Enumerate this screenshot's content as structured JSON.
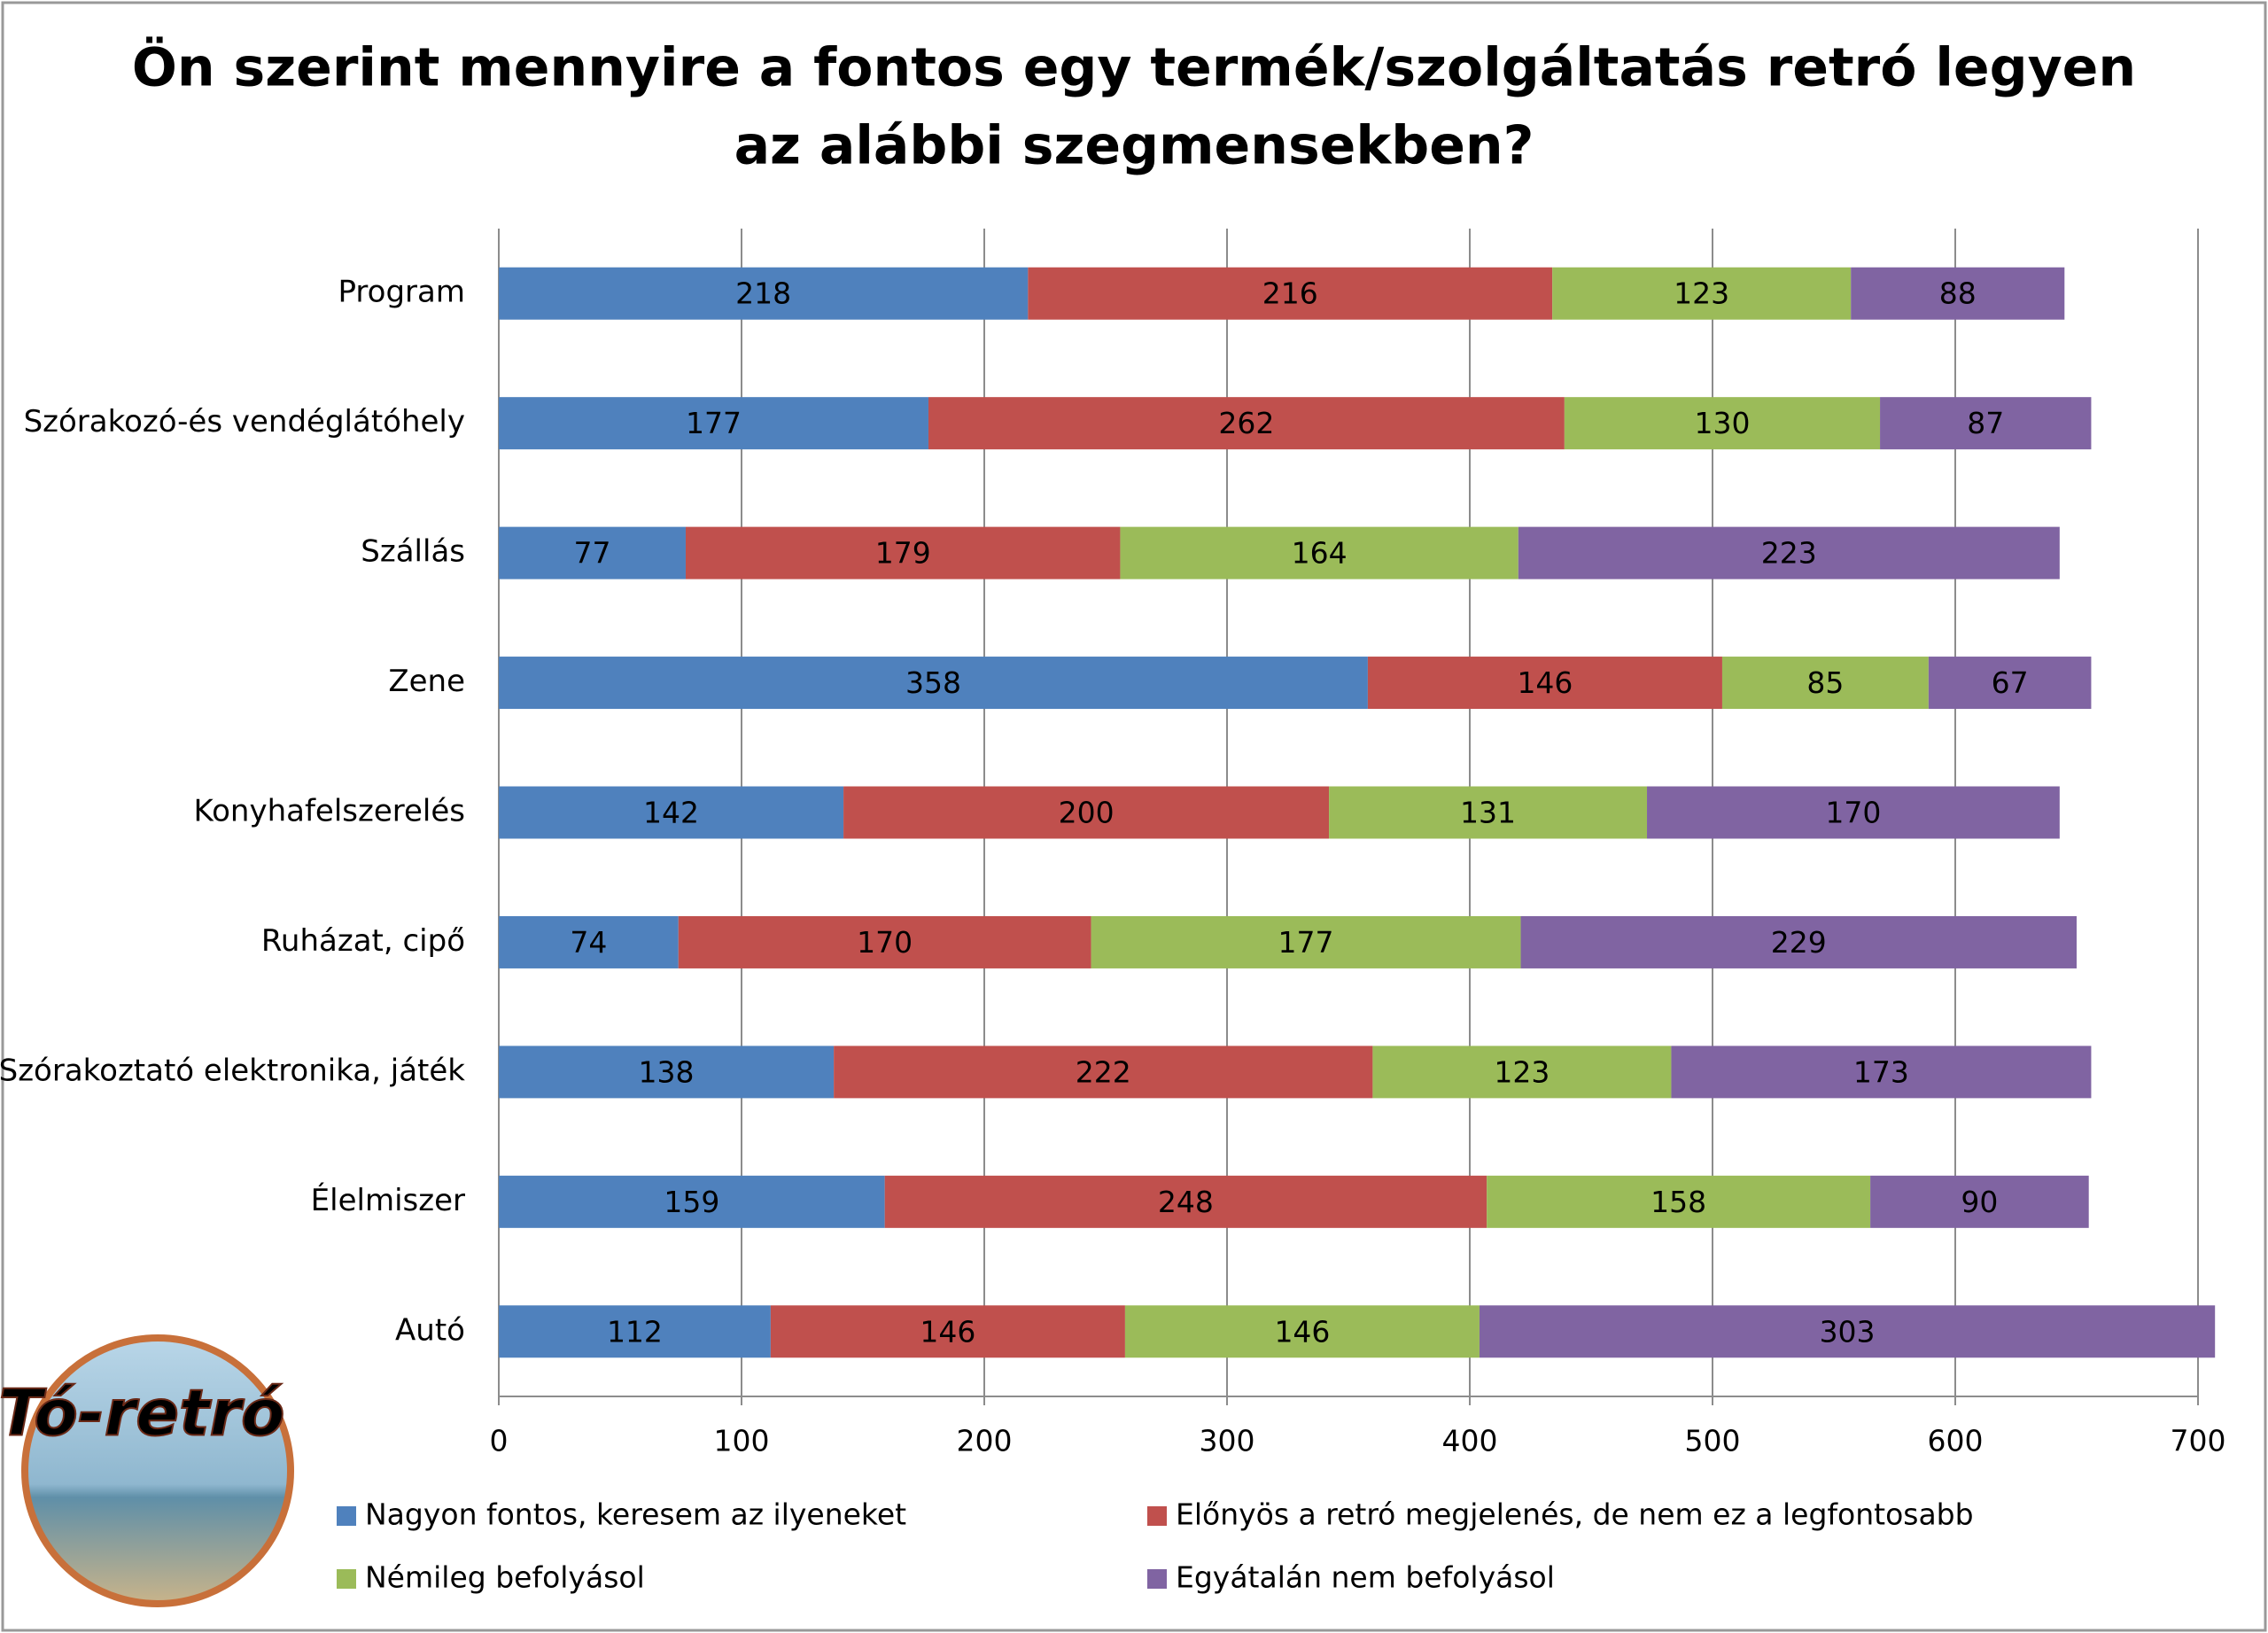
{
  "chart_data": {
    "type": "stacked-bar-horizontal",
    "title": [
      "Ön szerint mennyire a fontos egy termék/szolgáltatás retró legyen",
      "az alábbi szegmensekben?"
    ],
    "categories": [
      "Program",
      "Szórakozó-és vendéglátóhely",
      "Szállás",
      "Zene",
      "Konyhafelszerelés",
      "Ruházat, cipő",
      "Szórakoztató elektronika, játék",
      "Élelmiszer",
      "Autó"
    ],
    "series": [
      {
        "name": "Nagyon fontos, keresem az ilyeneket",
        "color": "#4f81bd",
        "values": [
          218,
          177,
          77,
          358,
          142,
          74,
          138,
          159,
          112
        ]
      },
      {
        "name": "Előnyös a retró megjelenés, de nem ez a legfontosabb",
        "color": "#c0504d",
        "values": [
          216,
          262,
          179,
          146,
          200,
          170,
          222,
          248,
          146
        ]
      },
      {
        "name": "Némileg befolyásol",
        "color": "#9bbb59",
        "values": [
          123,
          130,
          164,
          85,
          131,
          177,
          123,
          158,
          146
        ]
      },
      {
        "name": "Egyátalán nem befolyásol",
        "color": "#8064a2",
        "values": [
          88,
          87,
          223,
          67,
          170,
          229,
          173,
          90,
          303
        ]
      }
    ],
    "xlim": [
      0,
      700
    ],
    "xticks": [
      0,
      100,
      200,
      300,
      400,
      500,
      600,
      700
    ],
    "grid": true,
    "logo_text": "Tó-retró"
  }
}
